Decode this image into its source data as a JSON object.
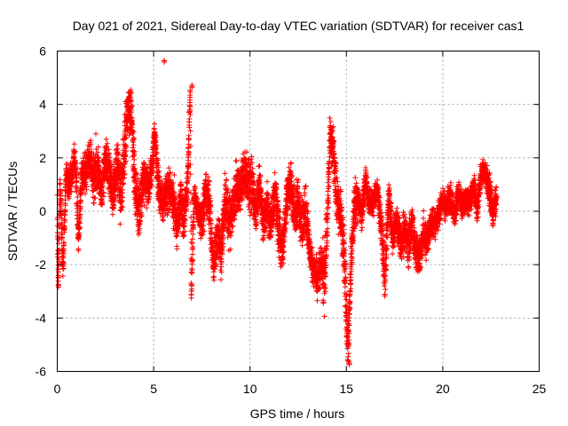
{
  "chart_data": {
    "type": "scatter",
    "title": "Day 021 of 2021, Sidereal Day-to-day VTEC variation (SDTVAR) for receiver cas1",
    "xlabel": "GPS time / hours",
    "ylabel": "SDTVAR / TECUs",
    "xlim": [
      0,
      25
    ],
    "ylim": [
      -6,
      6
    ],
    "xticks": [
      0,
      5,
      10,
      15,
      20,
      25
    ],
    "yticks": [
      -6,
      -4,
      -2,
      0,
      2,
      4,
      6
    ],
    "grid": true,
    "marker": "+",
    "color": "#ff0000",
    "series": [
      {
        "name": "SDTVAR",
        "trace": [
          [
            0.0,
            0.3,
            0.6
          ],
          [
            0.05,
            -2.6,
            0.3
          ],
          [
            0.15,
            1.0,
            0.5
          ],
          [
            0.3,
            -2.2,
            0.5
          ],
          [
            0.45,
            1.3,
            0.6
          ],
          [
            0.6,
            1.0,
            0.6
          ],
          [
            0.8,
            1.5,
            0.5
          ],
          [
            0.9,
            2.1,
            0.5
          ],
          [
            1.0,
            1.0,
            0.7
          ],
          [
            1.1,
            -1.2,
            0.5
          ],
          [
            1.25,
            1.3,
            0.8
          ],
          [
            1.5,
            1.5,
            0.9
          ],
          [
            1.7,
            2.0,
            0.7
          ],
          [
            1.9,
            1.2,
            1.2
          ],
          [
            2.1,
            1.8,
            1.2
          ],
          [
            2.3,
            0.8,
            0.8
          ],
          [
            2.5,
            2.0,
            0.8
          ],
          [
            2.7,
            1.4,
            0.9
          ],
          [
            2.9,
            0.5,
            0.9
          ],
          [
            3.1,
            1.9,
            1.1
          ],
          [
            3.3,
            0.5,
            1.2
          ],
          [
            3.5,
            2.5,
            1.6
          ],
          [
            3.65,
            3.7,
            0.9
          ],
          [
            3.8,
            4.0,
            1.0
          ],
          [
            3.95,
            2.0,
            1.4
          ],
          [
            4.1,
            0.5,
            1.3
          ],
          [
            4.3,
            0.0,
            1.2
          ],
          [
            4.5,
            1.4,
            1.0
          ],
          [
            4.7,
            0.8,
            0.9
          ],
          [
            4.9,
            1.5,
            0.6
          ],
          [
            5.05,
            3.0,
            0.4
          ],
          [
            5.2,
            1.2,
            0.9
          ],
          [
            5.4,
            0.3,
            0.8
          ],
          [
            5.6,
            0.6,
            0.8
          ],
          [
            5.8,
            0.9,
            0.9
          ],
          [
            6.0,
            0.5,
            1.0
          ],
          [
            6.2,
            -0.5,
            1.0
          ],
          [
            6.4,
            0.5,
            0.7
          ],
          [
            6.55,
            -0.2,
            0.9
          ],
          [
            6.75,
            0.8,
            0.8
          ],
          [
            6.9,
            4.5,
            0.2
          ],
          [
            6.95,
            -3.3,
            0.3
          ],
          [
            7.1,
            0.7,
            0.5
          ],
          [
            7.3,
            0.0,
            0.6
          ],
          [
            7.5,
            -0.5,
            0.9
          ],
          [
            7.7,
            0.7,
            0.8
          ],
          [
            7.9,
            0.3,
            1.0
          ],
          [
            8.1,
            -2.2,
            0.5
          ],
          [
            8.3,
            -0.8,
            1.1
          ],
          [
            8.5,
            -1.6,
            0.9
          ],
          [
            8.7,
            0.3,
            1.1
          ],
          [
            8.9,
            -0.5,
            1.2
          ],
          [
            9.1,
            0.0,
            1.1
          ],
          [
            9.3,
            1.0,
            1.2
          ],
          [
            9.5,
            0.8,
            1.1
          ],
          [
            9.7,
            1.5,
            0.9
          ],
          [
            9.9,
            0.9,
            1.0
          ],
          [
            10.1,
            1.0,
            1.0
          ],
          [
            10.3,
            0.0,
            0.9
          ],
          [
            10.5,
            1.0,
            0.8
          ],
          [
            10.7,
            -0.5,
            0.8
          ],
          [
            10.9,
            0.3,
            0.9
          ],
          [
            11.1,
            -0.5,
            1.0
          ],
          [
            11.3,
            0.7,
            0.9
          ],
          [
            11.5,
            -0.8,
            1.1
          ],
          [
            11.7,
            -1.5,
            0.8
          ],
          [
            11.9,
            0.5,
            1.0
          ],
          [
            12.1,
            1.0,
            0.8
          ],
          [
            12.3,
            0.0,
            0.9
          ],
          [
            12.5,
            0.3,
            1.0
          ],
          [
            12.7,
            -0.5,
            1.0
          ],
          [
            12.9,
            0.0,
            1.0
          ],
          [
            13.1,
            -1.5,
            0.6
          ],
          [
            13.3,
            -2.2,
            0.7
          ],
          [
            13.5,
            -2.5,
            0.9
          ],
          [
            13.7,
            -1.9,
            0.7
          ],
          [
            13.85,
            -2.5,
            1.5
          ],
          [
            14.0,
            -0.5,
            1.2
          ],
          [
            14.15,
            2.8,
            0.8
          ],
          [
            14.3,
            2.5,
            0.9
          ],
          [
            14.5,
            0.3,
            1.2
          ],
          [
            14.7,
            0.0,
            1.0
          ],
          [
            14.9,
            -1.8,
            1.0
          ],
          [
            15.0,
            -4.2,
            1.4
          ],
          [
            15.1,
            -5.0,
            0.7
          ],
          [
            15.2,
            -2.8,
            1.0
          ],
          [
            15.4,
            0.2,
            1.1
          ],
          [
            15.6,
            0.5,
            0.7
          ],
          [
            15.8,
            -0.2,
            0.7
          ],
          [
            16.0,
            1.2,
            0.6
          ],
          [
            16.2,
            0.2,
            0.6
          ],
          [
            16.4,
            0.4,
            0.6
          ],
          [
            16.6,
            0.8,
            0.5
          ],
          [
            16.8,
            -0.5,
            0.8
          ],
          [
            17.0,
            -2.5,
            1.0
          ],
          [
            17.2,
            0.7,
            0.5
          ],
          [
            17.4,
            -1.0,
            0.7
          ],
          [
            17.6,
            -0.2,
            0.6
          ],
          [
            17.8,
            -1.2,
            0.8
          ],
          [
            18.0,
            -0.8,
            0.9
          ],
          [
            18.2,
            -1.3,
            0.9
          ],
          [
            18.4,
            -0.5,
            0.8
          ],
          [
            18.6,
            -1.5,
            0.8
          ],
          [
            18.8,
            -1.8,
            0.8
          ],
          [
            19.0,
            -0.8,
            0.7
          ],
          [
            19.2,
            -1.2,
            0.7
          ],
          [
            19.4,
            -0.4,
            0.6
          ],
          [
            19.6,
            -0.5,
            0.6
          ],
          [
            19.8,
            0.0,
            0.6
          ],
          [
            20.0,
            0.4,
            0.5
          ],
          [
            20.2,
            0.2,
            0.6
          ],
          [
            20.4,
            0.6,
            0.6
          ],
          [
            20.6,
            -0.2,
            0.5
          ],
          [
            20.8,
            0.7,
            0.5
          ],
          [
            21.0,
            0.2,
            0.6
          ],
          [
            21.2,
            0.5,
            0.6
          ],
          [
            21.4,
            0.3,
            0.5
          ],
          [
            21.6,
            1.0,
            0.5
          ],
          [
            21.8,
            0.0,
            0.5
          ],
          [
            22.0,
            1.5,
            0.4
          ],
          [
            22.2,
            1.4,
            0.4
          ],
          [
            22.4,
            0.8,
            0.7
          ],
          [
            22.6,
            0.0,
            0.5
          ],
          [
            22.8,
            0.5,
            0.5
          ]
        ],
        "outliers": [
          [
            5.55,
            5.6
          ],
          [
            6.8,
            1.7
          ],
          [
            7.0,
            4.7
          ],
          [
            0.05,
            -2.8
          ],
          [
            15.15,
            -5.7
          ],
          [
            22.6,
            -0.5
          ]
        ]
      }
    ]
  }
}
